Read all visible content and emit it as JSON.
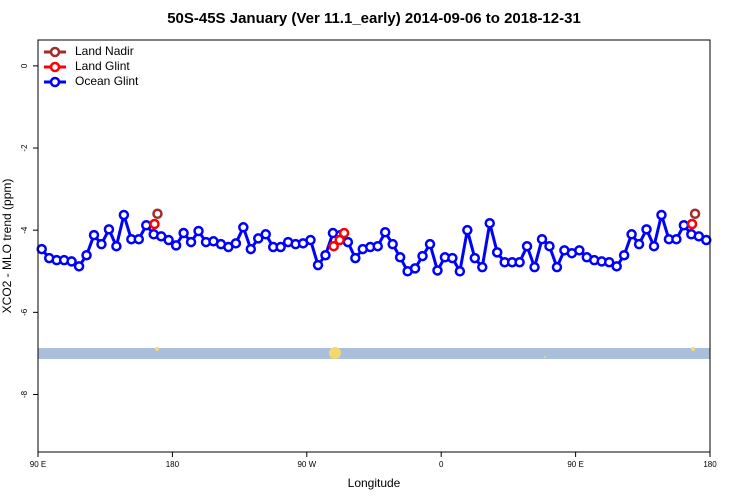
{
  "chart_data": {
    "type": "line",
    "title": "50S-45S January (Ver 11.1_early)   2014-09-06 to 2018-12-31",
    "x_label": "Longitude",
    "y_label": "XCO2 - MLO trend (ppm)",
    "xlim": [
      90,
      540
    ],
    "xticks": [
      {
        "value": 90,
        "label": "90 E"
      },
      180,
      {
        "value": 270,
        "label": "90 W"
      },
      {
        "value": 360,
        "label": "0"
      },
      {
        "value": 450,
        "label": "90 E"
      },
      {
        "value": 540,
        "label": "180"
      }
    ],
    "ylim": [
      -9.4,
      0.63
    ],
    "yticks": [
      -8,
      -6,
      -4,
      -2,
      0
    ],
    "legend": "top-left",
    "series": [
      {
        "name": "Land Nadir",
        "color": "#a52a2a",
        "x": [
          170,
          530
        ],
        "values": [
          -3.6,
          -3.6
        ]
      },
      {
        "name": "Land Glint",
        "color": "#ff0000",
        "x": [
          168,
          288,
          292,
          295,
          528
        ],
        "values": [
          -3.85,
          -4.39,
          -4.24,
          -4.07,
          -3.85
        ]
      },
      {
        "name": "Ocean Glint",
        "color": "#0000ff",
        "x": [
          92.5,
          97.5,
          102.5,
          107.5,
          112.5,
          117.5,
          122.5,
          127.5,
          132.5,
          137.5,
          142.5,
          147.5,
          152.5,
          157.5,
          162.5,
          167.5,
          172.5,
          177.5,
          182.5,
          187.5,
          192.5,
          197.5,
          202.5,
          207.5,
          212.5,
          217.5,
          222.5,
          227.5,
          232.5,
          237.5,
          242.5,
          247.5,
          252.5,
          257.5,
          262.5,
          267.5,
          272.5,
          277.5,
          282.5,
          287.5,
          292.5,
          297.5,
          302.5,
          307.5,
          312.5,
          317.5,
          322.5,
          327.5,
          332.5,
          337.5,
          342.5,
          347.5,
          352.5,
          357.5,
          362.5,
          367.5,
          372.5,
          377.5,
          382.5,
          387.5,
          392.5,
          397.5,
          402.5,
          407.5,
          412.5,
          417.5,
          422.5,
          427.5,
          432.5,
          437.5,
          442.5,
          447.5,
          452.5,
          457.5,
          462.5,
          467.5,
          472.5,
          477.5,
          482.5,
          487.5,
          492.5,
          497.5,
          502.5,
          507.5,
          512.5,
          517.5,
          522.5,
          527.5,
          532.5,
          537.5
        ],
        "values": [
          -4.46,
          -4.68,
          -4.73,
          -4.73,
          -4.76,
          -4.88,
          -4.61,
          -4.12,
          -4.34,
          -3.98,
          -4.39,
          -3.63,
          -4.22,
          -4.22,
          -3.88,
          -4.1,
          -4.15,
          -4.24,
          -4.37,
          -4.07,
          -4.29,
          -4.02,
          -4.29,
          -4.27,
          -4.34,
          -4.41,
          -4.32,
          -3.93,
          -4.46,
          -4.2,
          -4.1,
          -4.41,
          -4.41,
          -4.29,
          -4.34,
          -4.32,
          -4.24,
          -4.85,
          -4.61,
          -4.07,
          -4.12,
          -4.29,
          -4.68,
          -4.46,
          -4.41,
          -4.39,
          -4.05,
          -4.34,
          -4.66,
          -5.0,
          -4.93,
          -4.63,
          -4.34,
          -4.98,
          -4.66,
          -4.68,
          -5.0,
          -4.0,
          -4.68,
          -4.9,
          -3.83,
          -4.54,
          -4.78,
          -4.78,
          -4.78,
          -4.39,
          -4.9,
          -4.22,
          -4.39,
          -4.9,
          -4.49,
          -4.56,
          -4.49,
          -4.66,
          -4.73,
          -4.76,
          -4.78,
          -4.88,
          -4.61,
          -4.1,
          -4.34,
          -3.98,
          -4.39,
          -3.63,
          -4.22,
          -4.22,
          -3.88,
          -4.1,
          -4.15,
          -4.24
        ]
      }
    ]
  }
}
